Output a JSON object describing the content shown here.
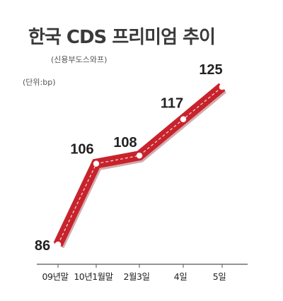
{
  "chart_data": {
    "type": "line",
    "title": "한국 CDS 프리미엄 추이",
    "subtitle": "(신용부도스와프)",
    "unit_note": "(단위:bp)",
    "categories": [
      "09년말",
      "10년1월말",
      "2월3일",
      "4일",
      "5일"
    ],
    "values": [
      86,
      106,
      108,
      117,
      125
    ],
    "data_labels": [
      "86",
      "106",
      "108",
      "117",
      "125"
    ],
    "ylim": [
      80,
      130
    ],
    "grid": false,
    "line_color": "#c8232c",
    "marker_color": "#ffffff",
    "axis_color": "#555555"
  }
}
